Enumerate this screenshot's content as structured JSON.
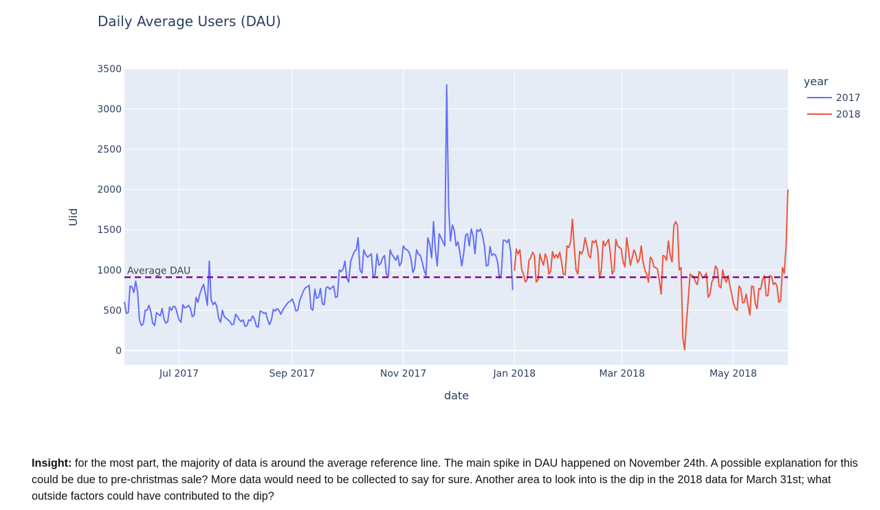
{
  "insight": {
    "label": "Insight:",
    "text": "for the most part, the majority of data is around the average reference line. The main spike in DAU happened on November 24th. A possible explanation for this could be due to pre-christmas sale? More data would need to be collected to say for sure. Another area to look into is the dip in the 2018 data for March 31st; what outside factors could have contributed to the dip?"
  },
  "colors": {
    "plot_bg": "#e5ecf6",
    "grid": "#ffffff",
    "text": "#2a3f5f",
    "series_2017": "#636efa",
    "series_2018": "#ef553b",
    "reference": "#800080"
  },
  "chart_data": {
    "type": "line",
    "title": "Daily Average Users (DAU)",
    "xlabel": "date",
    "ylabel": "Uid",
    "xlim": [
      "2017-06-01",
      "2018-05-31"
    ],
    "ylim": [
      -180,
      3500
    ],
    "x_tick_labels": [
      "Jul 2017",
      "Sep 2017",
      "Nov 2017",
      "Jan 2018",
      "Mar 2018",
      "May 2018"
    ],
    "x_ticks": [
      "2017-07-01",
      "2017-09-01",
      "2017-11-01",
      "2018-01-01",
      "2018-03-01",
      "2018-05-01"
    ],
    "y_ticks": [
      0,
      500,
      1000,
      1500,
      2000,
      2500,
      3000,
      3500
    ],
    "grid": true,
    "legend": {
      "title": "year",
      "position": "top-right",
      "entries": [
        "2017",
        "2018"
      ]
    },
    "reference_line": {
      "label": "Average DAU",
      "value": 910,
      "style": "dashed"
    },
    "series": [
      {
        "name": "2017",
        "start": "2017-06-01",
        "end": "2017-12-31",
        "values": [
          605,
          460,
          470,
          800,
          790,
          720,
          860,
          720,
          380,
          310,
          330,
          500,
          500,
          560,
          480,
          340,
          310,
          470,
          450,
          430,
          520,
          390,
          340,
          360,
          540,
          500,
          550,
          540,
          460,
          380,
          350,
          570,
          530,
          540,
          560,
          520,
          420,
          440,
          660,
          600,
          700,
          770,
          820,
          700,
          560,
          1110,
          630,
          570,
          600,
          550,
          400,
          350,
          500,
          420,
          400,
          380,
          360,
          320,
          330,
          450,
          420,
          380,
          360,
          380,
          300,
          310,
          380,
          370,
          430,
          390,
          300,
          290,
          490,
          480,
          460,
          470,
          380,
          320,
          380,
          510,
          490,
          520,
          500,
          450,
          500,
          540,
          570,
          600,
          610,
          640,
          580,
          490,
          500,
          620,
          680,
          740,
          780,
          790,
          810,
          520,
          500,
          760,
          650,
          660,
          770,
          580,
          570,
          780,
          790,
          760,
          780,
          800,
          660,
          670,
          1000,
          980,
          1010,
          1110,
          900,
          850,
          1100,
          1170,
          1230,
          1250,
          1400,
          1000,
          960,
          1250,
          1190,
          1160,
          1180,
          1200,
          920,
          940,
          1200,
          1060,
          1080,
          1150,
          1180,
          950,
          920,
          1250,
          1190,
          1160,
          1120,
          1180,
          1050,
          1100,
          1300,
          1260,
          1250,
          1220,
          1150,
          970,
          1020,
          1250,
          1200,
          1180,
          1100,
          1000,
          930,
          1400,
          1320,
          1150,
          1600,
          1250,
          1050,
          1450,
          1400,
          1350,
          1300,
          3300,
          1800,
          1360,
          1560,
          1490,
          1300,
          1350,
          1220,
          1050,
          1200,
          1430,
          1450,
          1300,
          1510,
          1430,
          1200,
          1500,
          1480,
          1510,
          1430,
          1300,
          1050,
          1060,
          1290,
          1180,
          1200,
          1180,
          1100,
          900,
          950,
          1370,
          1370,
          1340,
          1380,
          1220,
          750
        ]
      },
      {
        "name": "2018",
        "start": "2018-01-01",
        "end": "2018-05-31",
        "values": [
          990,
          1260,
          1200,
          1250,
          1000,
          950,
          850,
          880,
          1120,
          1150,
          1220,
          1180,
          850,
          880,
          1200,
          1120,
          1060,
          1200,
          1140,
          950,
          980,
          1230,
          1150,
          1190,
          1150,
          1220,
          1100,
          950,
          940,
          1300,
          1280,
          1350,
          1630,
          1300,
          1000,
          950,
          1230,
          1200,
          1250,
          1400,
          1300,
          1180,
          1150,
          1360,
          1340,
          1370,
          1250,
          900,
          1000,
          1360,
          1300,
          1340,
          1380,
          1200,
          950,
          1000,
          1380,
          1300,
          1280,
          1260,
          1100,
          1040,
          1400,
          1250,
          1060,
          1150,
          1250,
          1200,
          1090,
          1130,
          1300,
          1100,
          1000,
          950,
          850,
          1160,
          1130,
          1040,
          1030,
          1010,
          870,
          700,
          1180,
          1170,
          1120,
          1360,
          1190,
          1100,
          1550,
          1600,
          1560,
          1000,
          1030,
          150,
          10,
          350,
          650,
          950,
          930,
          920,
          850,
          820,
          980,
          950,
          900,
          920,
          960,
          660,
          700,
          850,
          900,
          1050,
          1020,
          800,
          780,
          1000,
          900,
          850,
          930,
          800,
          700,
          580,
          520,
          500,
          800,
          770,
          590,
          600,
          700,
          560,
          440,
          800,
          790,
          580,
          520,
          770,
          760,
          880,
          930,
          680,
          680,
          930,
          920,
          820,
          840,
          800,
          600,
          620,
          1030,
          960,
          1300,
          2000
        ]
      }
    ]
  }
}
